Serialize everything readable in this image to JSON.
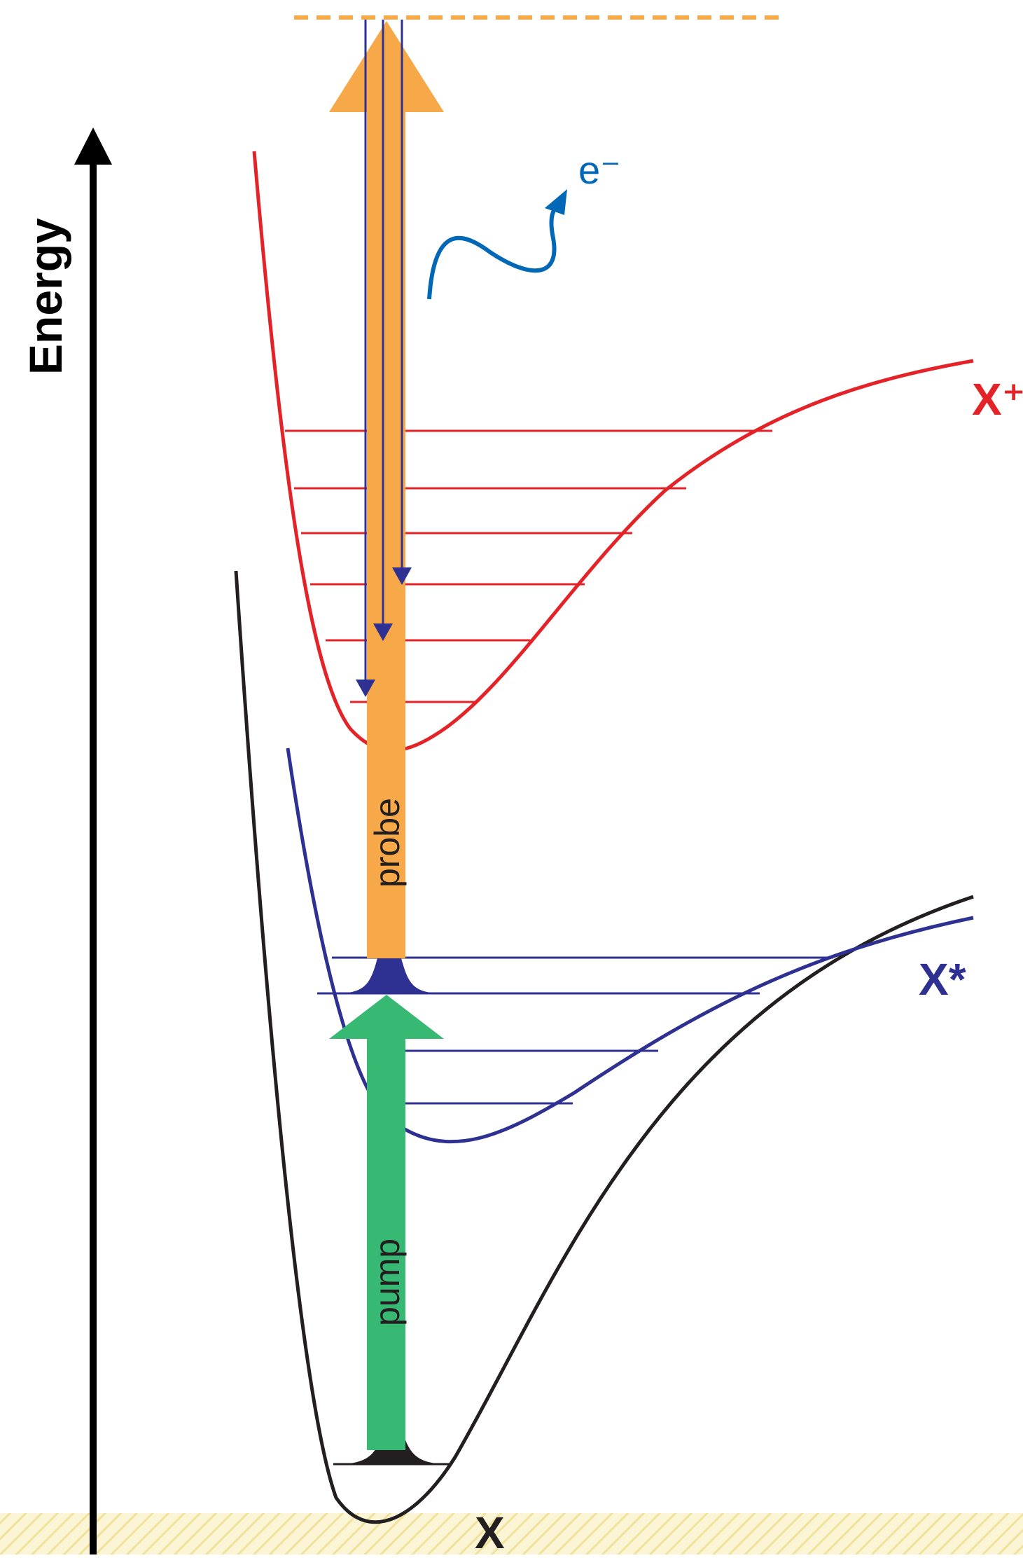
{
  "axis": {
    "label": "Energy"
  },
  "beams": {
    "probe_label": "probe",
    "pump_label": "pump"
  },
  "states": {
    "ground": "X",
    "excited": "X*",
    "ion": "X⁺"
  },
  "electron": {
    "label": "e⁻"
  },
  "colors": {
    "ion_curve": "#e42329",
    "excited_curve": "#2e3192",
    "ground_curve": "#231f20",
    "probe": "#f7a848",
    "pump": "#37b873",
    "electron": "#0068b6",
    "axis": "#000000",
    "hatch": "#f3e7a6"
  }
}
